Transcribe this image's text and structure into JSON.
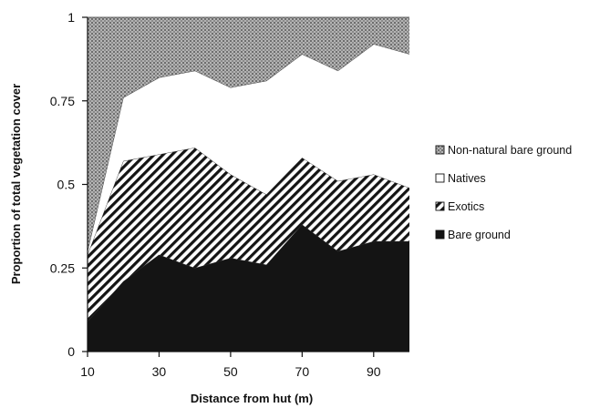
{
  "chart_data": {
    "type": "area",
    "stacked": true,
    "xlabel": "Distance from hut (m)",
    "ylabel": "Proportion of total vegetation cover",
    "x": [
      10,
      20,
      30,
      40,
      50,
      60,
      70,
      80,
      90,
      100
    ],
    "xlim": [
      10,
      100
    ],
    "ylim": [
      0,
      1
    ],
    "xticks": [
      10,
      30,
      50,
      70,
      90
    ],
    "xtick_labels": [
      "10",
      "30",
      "50",
      "70",
      "90"
    ],
    "yticks": [
      0,
      0.25,
      0.5,
      0.75,
      1
    ],
    "ytick_labels": [
      "0",
      "0.25",
      "0.5",
      "0.75",
      "1"
    ],
    "legend_position": "right",
    "series": [
      {
        "name": "Bare ground",
        "pattern": "solid",
        "color": "#141414",
        "values": [
          0.09,
          0.21,
          0.29,
          0.25,
          0.28,
          0.26,
          0.38,
          0.3,
          0.33,
          0.33
        ]
      },
      {
        "name": "Exotics",
        "pattern": "diagonal-hatch",
        "color": "#141414",
        "values": [
          0.2,
          0.36,
          0.3,
          0.36,
          0.25,
          0.21,
          0.2,
          0.21,
          0.2,
          0.16
        ]
      },
      {
        "name": "Natives",
        "pattern": "white",
        "color": "#ffffff",
        "values": [
          0.01,
          0.19,
          0.23,
          0.23,
          0.26,
          0.34,
          0.31,
          0.33,
          0.39,
          0.4
        ]
      },
      {
        "name": "Non-natural bare ground",
        "pattern": "crosshatch-grey",
        "color": "#9a9a9a",
        "values": [
          0.7,
          0.24,
          0.18,
          0.16,
          0.21,
          0.19,
          0.11,
          0.16,
          0.08,
          0.11
        ]
      }
    ],
    "legend_order": [
      "Non-natural bare ground",
      "Natives",
      "Exotics",
      "Bare ground"
    ]
  }
}
